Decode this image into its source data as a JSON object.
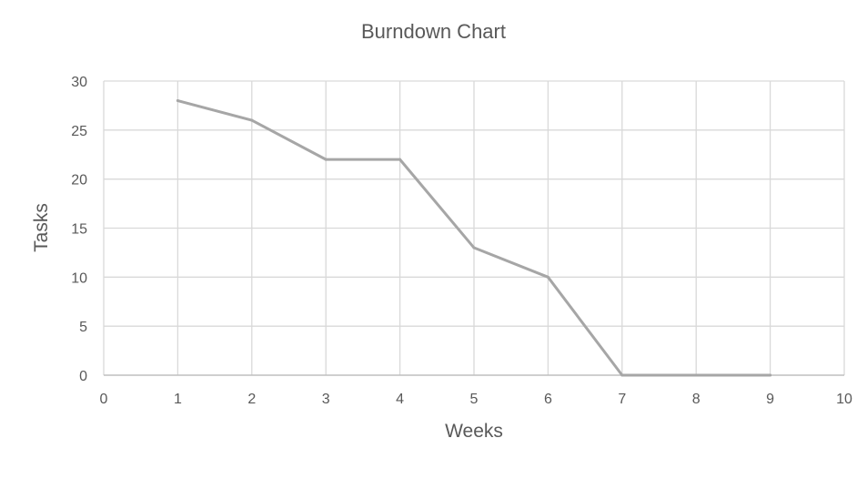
{
  "chart_data": {
    "type": "line",
    "title": "Burndown Chart",
    "xlabel": "Weeks",
    "ylabel": "Tasks",
    "xlim": [
      0,
      10
    ],
    "ylim": [
      0,
      30
    ],
    "x_ticks": [
      0,
      1,
      2,
      3,
      4,
      5,
      6,
      7,
      8,
      9,
      10
    ],
    "y_ticks": [
      0,
      5,
      10,
      15,
      20,
      25,
      30
    ],
    "grid": true,
    "legend": "none",
    "series": [
      {
        "x": [
          1,
          2,
          3,
          4,
          5,
          6,
          7,
          8,
          9
        ],
        "values": [
          28,
          26,
          22,
          22,
          13,
          10,
          0,
          0,
          0
        ],
        "color": "#a6a6a6"
      }
    ],
    "colors": {
      "grid": "#d9d9d9",
      "axis": "#bfbfbf",
      "text": "#595959"
    }
  }
}
